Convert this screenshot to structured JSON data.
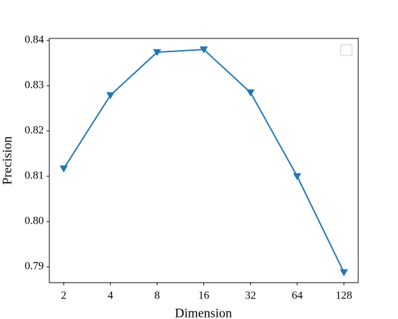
{
  "chart_data": {
    "type": "line",
    "xlabel": "Dimension",
    "ylabel": "Precision",
    "categories": [
      "2",
      "4",
      "8",
      "16",
      "32",
      "64",
      "128"
    ],
    "series": [
      {
        "color": "#1f77b4",
        "marker": "triangle-down",
        "values": [
          0.8117,
          0.8279,
          0.8374,
          0.838,
          0.8285,
          0.81,
          0.7888
        ]
      }
    ],
    "ylim": [
      0.78652,
      0.84045
    ],
    "yticks": [
      {
        "value": 0.79,
        "label": "0.79"
      },
      {
        "value": 0.8,
        "label": "0.80"
      },
      {
        "value": 0.81,
        "label": "0.81"
      },
      {
        "value": 0.82,
        "label": "0.82"
      },
      {
        "value": 0.83,
        "label": "0.83"
      },
      {
        "value": 0.84,
        "label": "0.84"
      }
    ],
    "grid": false
  }
}
